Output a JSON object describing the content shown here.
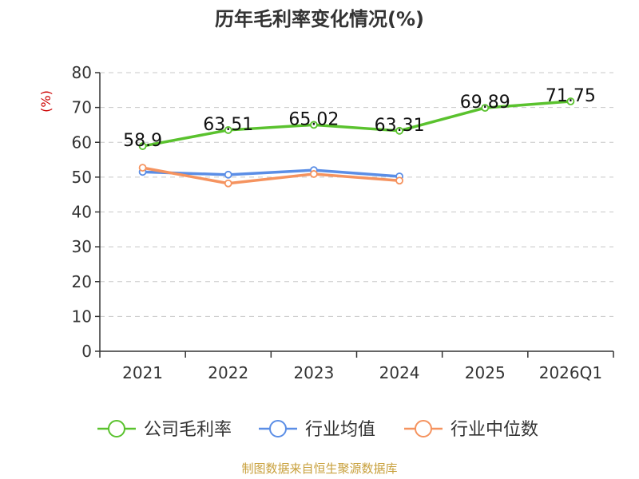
{
  "chart_data": {
    "type": "line",
    "title": "历年毛利率变化情况(%)",
    "ylabel": "(%)",
    "xlabel": "",
    "categories": [
      "2021",
      "2022",
      "2023",
      "2024",
      "2025",
      "2026Q1"
    ],
    "ylim": [
      0,
      80
    ],
    "yticks": [
      0,
      10,
      20,
      30,
      40,
      50,
      60,
      70,
      80
    ],
    "grid": true,
    "legend_position": "bottom",
    "series": [
      {
        "name": "公司毛利率",
        "color": "#5ac22e",
        "values": [
          58.9,
          63.51,
          65.02,
          63.31,
          69.89,
          71.75
        ],
        "labels": [
          "58.9",
          "63.51",
          "65.02",
          "63.31",
          "69.89",
          "71.75"
        ]
      },
      {
        "name": "行业均值",
        "color": "#5b8ee6",
        "values": [
          51.5,
          50.7,
          52.0,
          50.2,
          null,
          null
        ]
      },
      {
        "name": "行业中位数",
        "color": "#f5935f",
        "values": [
          52.7,
          48.2,
          50.9,
          49.0,
          null,
          null
        ]
      }
    ],
    "source": "制图数据来自恒生聚源数据库"
  }
}
